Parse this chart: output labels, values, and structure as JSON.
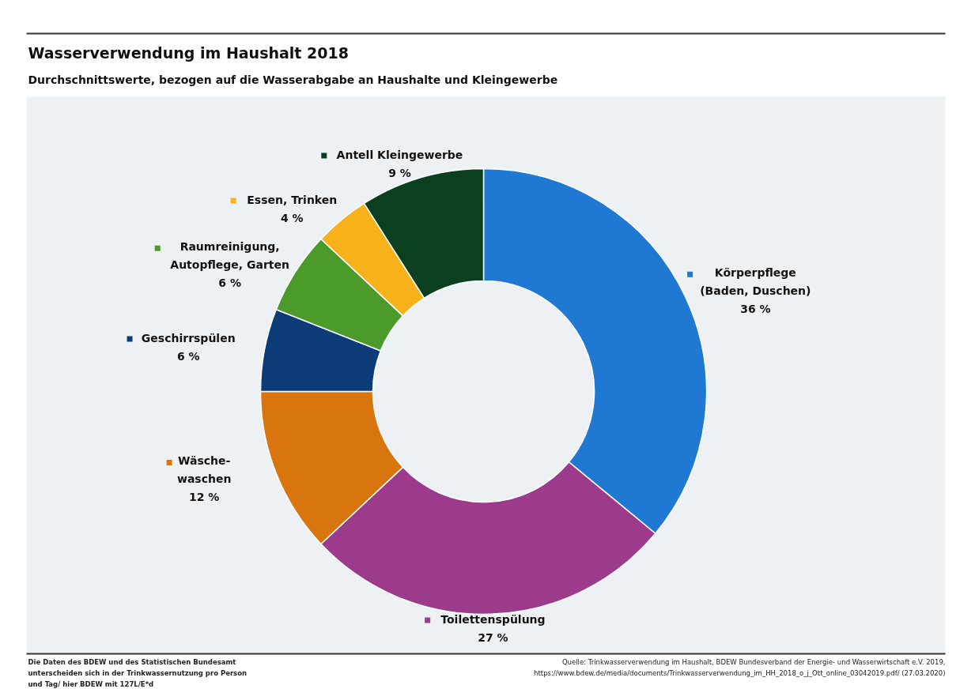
{
  "chart_data": {
    "type": "donut",
    "title": "Wasserverwendung im Haushalt 2018",
    "subtitle": "Durchschnittswerte, bezogen auf die Wasserabgabe an Haushalte und Kleingewerbe",
    "categories": [
      "Körperpflege\n(Baden, Duschen)",
      "Toilettenspülung",
      "Wäsche-\nwaschen",
      "Geschirrspülen",
      "Raumreinigung,\nAutopflege, Garten",
      "Essen, Trinken",
      "Antell Kleingewerbe"
    ],
    "values": [
      36,
      27,
      12,
      6,
      6,
      4,
      9
    ],
    "value_labels": [
      "36 %",
      "27 %",
      "12 %",
      "6 %",
      "6 %",
      "4 %",
      "9 %"
    ],
    "legend": "top left",
    "colors": [
      "#1f78d1",
      "#9c3b8c",
      "#d9750f",
      "#0b3c78",
      "#4b9a2a",
      "#f7b21b",
      "#0a4020"
    ],
    "annotations": [
      "Die Daten des BDEW und des Statistischen Bundesamt\nunterscheiden sich in der Trinkwassernutzung pro Person\nund Tag/ hier BDEW mit 127L/E*d",
      "Quelle: Trinkwasserverwendung im Haushalt, BDEW Bundesverband der Energie- und Wasserwirtschaft e.V. 2019,\nhttps://www.bdew.de/media/documents/Trinkwasserverwendung_im_HH_2018_o_j_Ott_online_03042019.pdf/ (27.03.2020)"
    ]
  }
}
